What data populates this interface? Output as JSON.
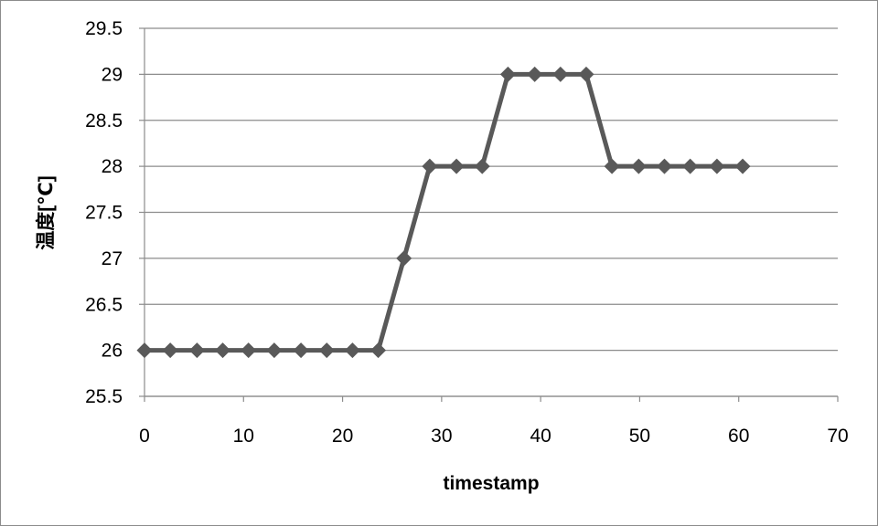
{
  "chart_data": {
    "type": "line",
    "title": "",
    "xlabel": "timestamp",
    "ylabel": "温度[℃]",
    "xlim": [
      0,
      70
    ],
    "ylim": [
      25.5,
      29.5
    ],
    "x_ticks": [
      0,
      10,
      20,
      30,
      40,
      50,
      60,
      70
    ],
    "y_ticks": [
      25.5,
      26,
      26.5,
      27,
      27.5,
      28,
      28.5,
      29,
      29.5
    ],
    "y_tick_labels": [
      "25.5",
      "26",
      "26.5",
      "27",
      "27.5",
      "28",
      "28.5",
      "29",
      "29.5"
    ],
    "grid": "horizontal",
    "legend": "none",
    "series": [
      {
        "x": [
          0,
          2.6,
          5.3,
          7.9,
          10.5,
          13.1,
          15.8,
          18.4,
          21,
          23.6,
          26.2,
          28.8,
          31.5,
          34.1,
          36.7,
          39.4,
          42,
          44.6,
          47.2,
          49.9,
          52.5,
          55.1,
          57.8,
          60.4
        ],
        "y": [
          26,
          26,
          26,
          26,
          26,
          26,
          26,
          26,
          26,
          26,
          27,
          28,
          28,
          28,
          29,
          29,
          29,
          29,
          28,
          28,
          28,
          28,
          28,
          28
        ]
      }
    ],
    "colors": {
      "line": "#595959",
      "grid": "#8c8c8c",
      "axis": "#8c8c8c"
    }
  }
}
